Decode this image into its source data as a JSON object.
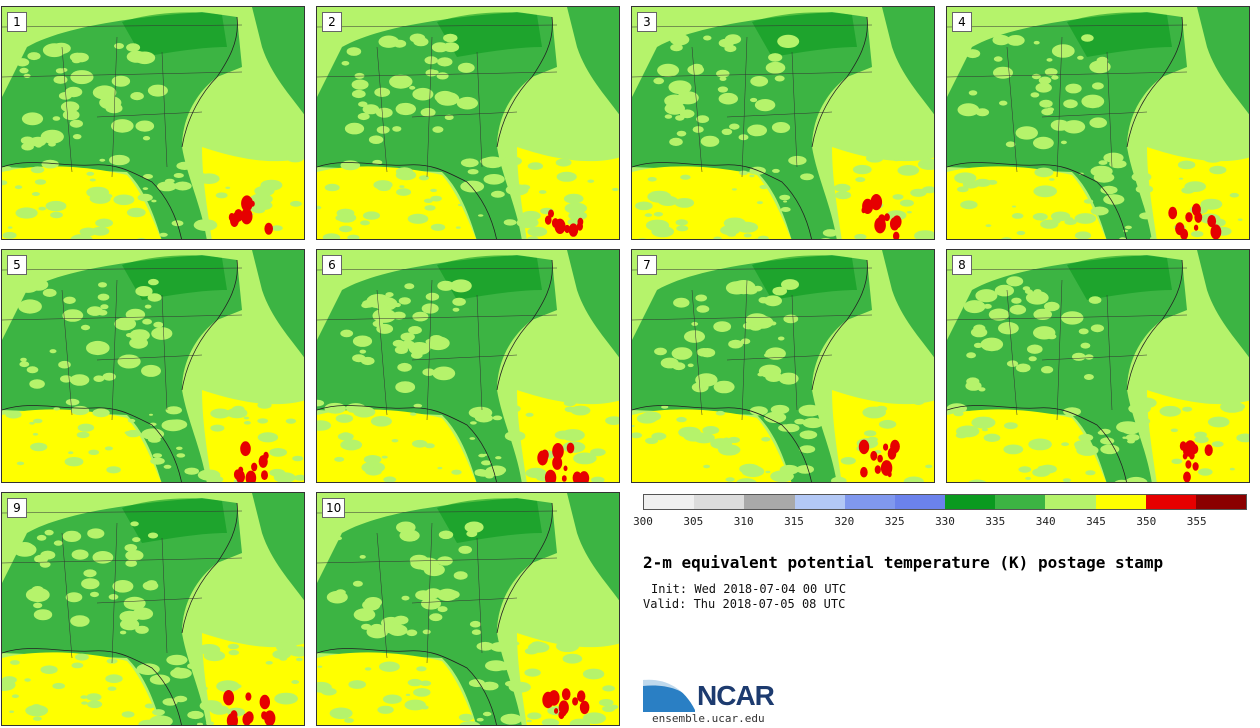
{
  "chart_data": {
    "type": "heatmap",
    "title": "2-m equivalent potential temperature (K) postage stamp",
    "init": "Init: Wed 2018-07-04 00 UTC",
    "valid": "Valid: Thu 2018-07-05 08 UTC",
    "variable": "2-m equivalent potential temperature",
    "units": "K",
    "colorbar": {
      "levels": [
        "300",
        "305",
        "310",
        "315",
        "320",
        "325",
        "330",
        "335",
        "340",
        "345",
        "350",
        "355"
      ],
      "colors": [
        "#f0f0f0",
        "#dcdcdc",
        "#a9a9a9",
        "#b3c8f5",
        "#8098ee",
        "#6b82ec",
        "#0a9a1f",
        "#3cb443",
        "#b5f36b",
        "#ffff00",
        "#e60000",
        "#8b0000"
      ]
    },
    "members": [
      "1",
      "2",
      "3",
      "4",
      "5",
      "6",
      "7",
      "8",
      "9",
      "10"
    ]
  },
  "branding": {
    "logo_text": "NCAR",
    "url": "ensemble.ucar.edu"
  }
}
